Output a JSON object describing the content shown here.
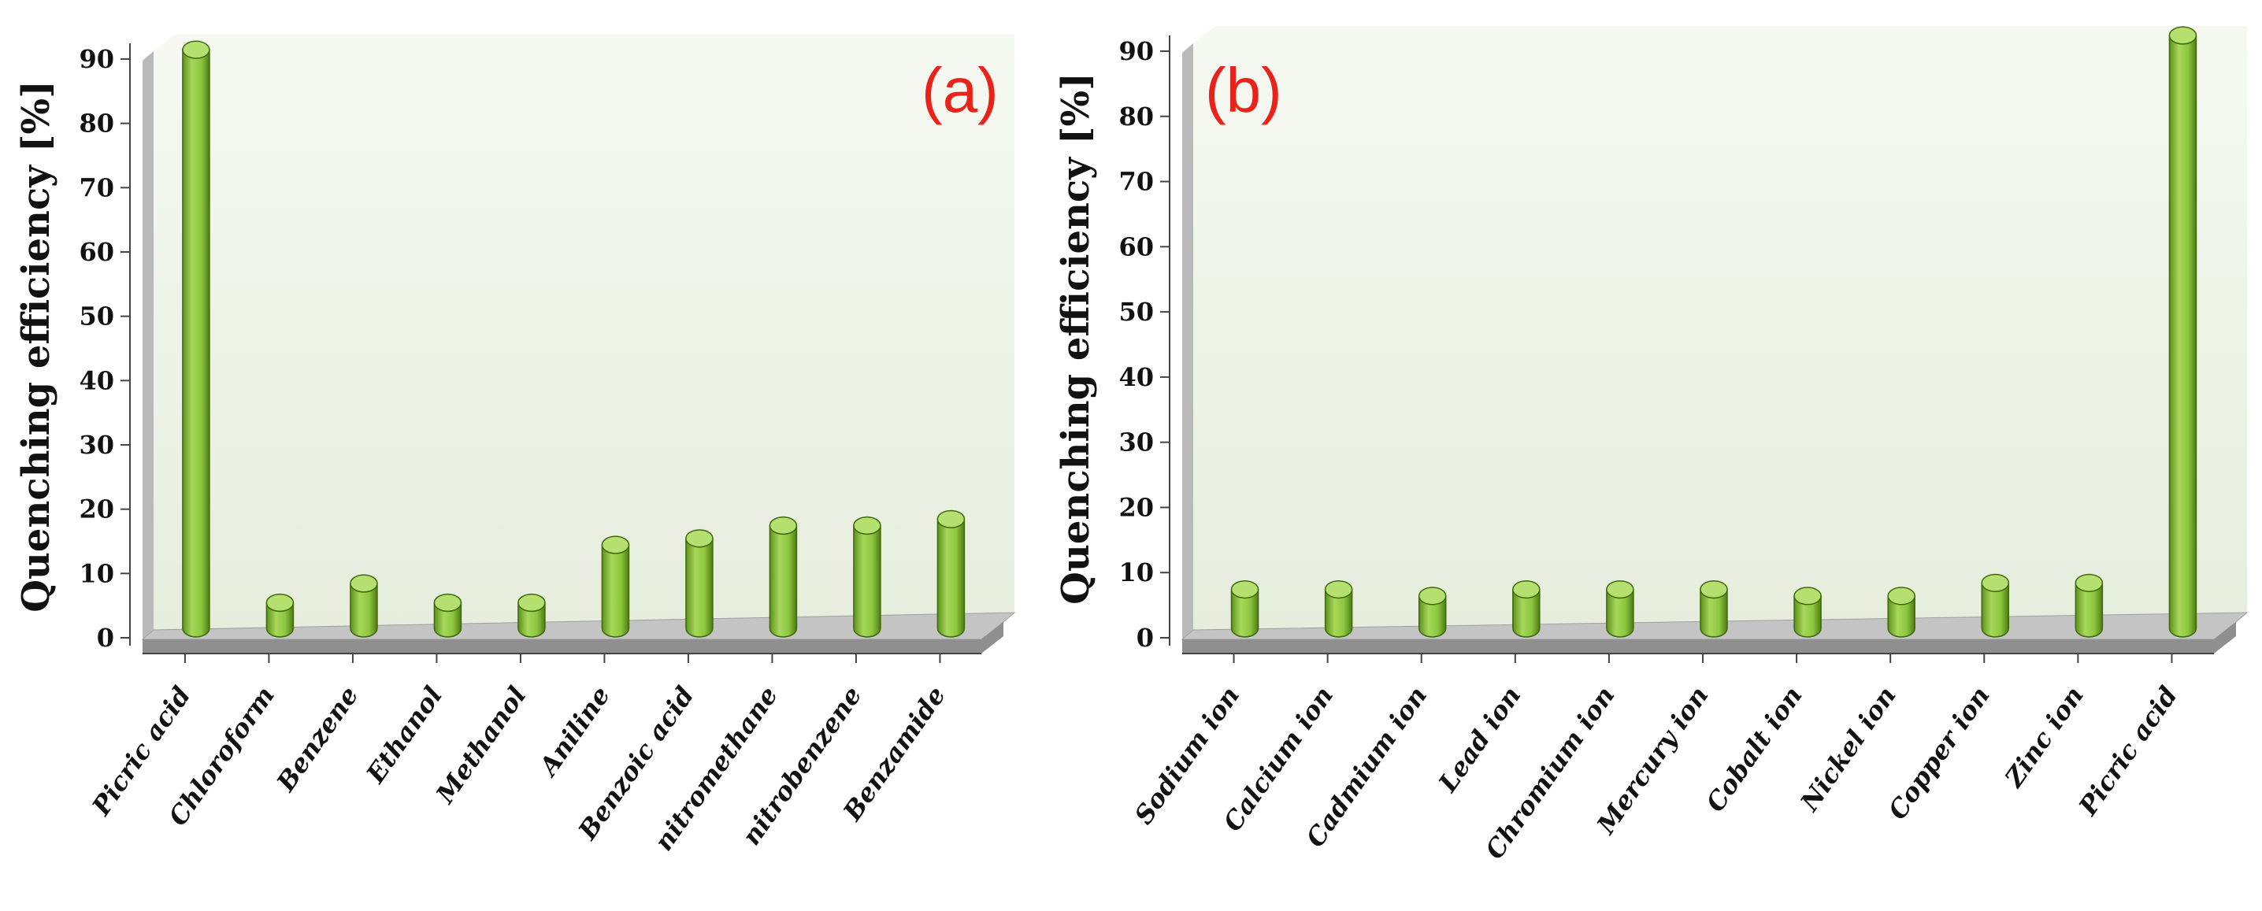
{
  "chart_data": [
    {
      "type": "bar",
      "panel_label": "(a)",
      "ylabel": "Quenching efficiency [%]",
      "ylim": [
        0,
        90
      ],
      "yticks": [
        "0",
        "10",
        "20",
        "30",
        "40",
        "50",
        "60",
        "70",
        "80",
        "90"
      ],
      "categories": [
        "Picric acid",
        "Chloroform",
        "Benzene",
        "Ethanol",
        "Methanol",
        "Aniline",
        "Benzoic acid",
        "nitromethane",
        "nitrobenzene",
        "Benzamide"
      ],
      "values": [
        89,
        3,
        6,
        3,
        3,
        12,
        13,
        15,
        15,
        16
      ],
      "grid": false,
      "colors": {
        "bar": "#8dc63f",
        "bar_dark": "#4e7d12",
        "wall": "#eef3e8"
      }
    },
    {
      "type": "bar",
      "panel_label": "(b)",
      "ylabel": "Quenching efficiency [%]",
      "ylim": [
        0,
        90
      ],
      "yticks": [
        "0",
        "10",
        "20",
        "30",
        "40",
        "50",
        "60",
        "70",
        "80",
        "90"
      ],
      "categories": [
        "Sodium ion",
        "Calcium ion",
        "Cadmium ion",
        "Lead ion",
        "Chromium ion",
        "Mercury ion",
        "Cobalt ion",
        "Nickel ion",
        "Copper ion",
        "Zinc ion",
        "Picric acid"
      ],
      "values": [
        5,
        5,
        4,
        5,
        5,
        5,
        4,
        4,
        6,
        6,
        90
      ],
      "grid": false,
      "colors": {
        "bar": "#8dc63f",
        "bar_dark": "#4e7d12",
        "wall": "#eef3e8"
      }
    }
  ]
}
